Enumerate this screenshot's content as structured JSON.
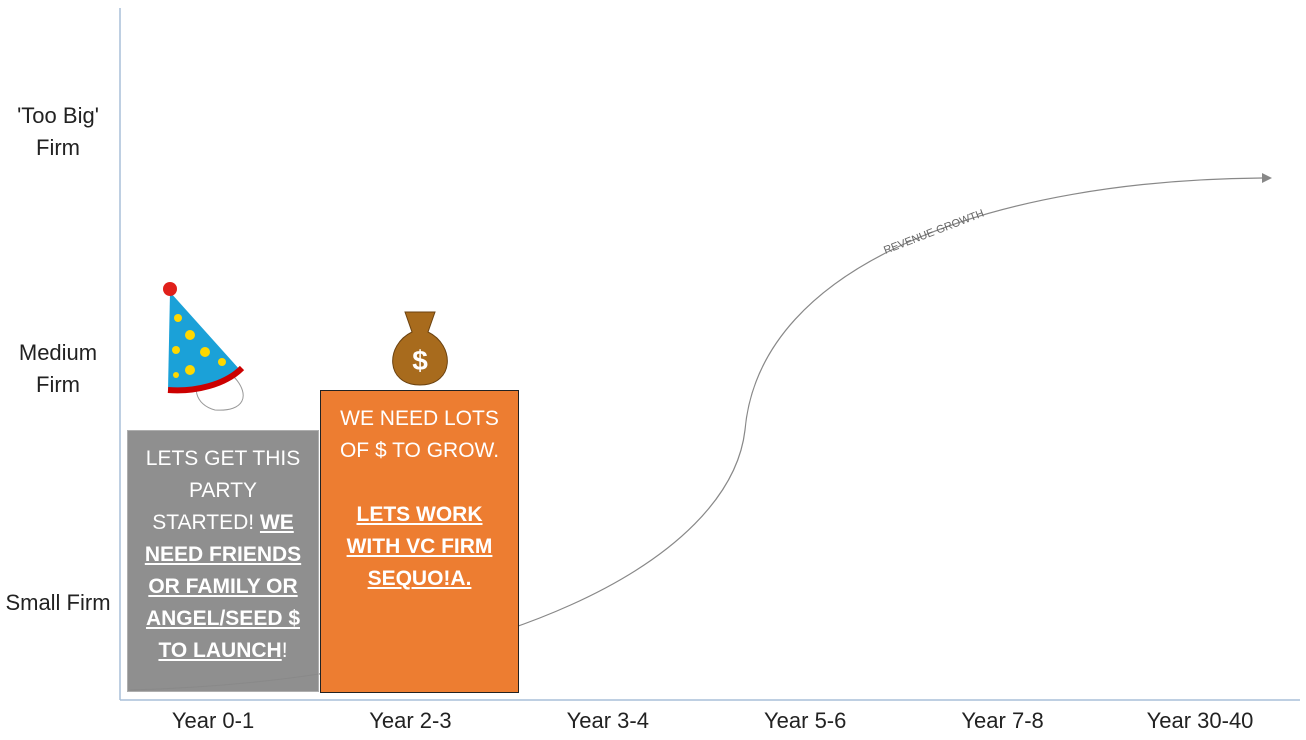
{
  "y_labels": [
    "'Too Big' Firm",
    "Medium Firm",
    "Small Firm"
  ],
  "x_labels": [
    "Year 0-1",
    "Year 2-3",
    "Year 3-4",
    "Year 5-6",
    "Year 7-8",
    "Year 30-40"
  ],
  "curve_label": "REVENUE GROWTH",
  "boxes": [
    {
      "paragraphs": [
        [
          {
            "text": "LETS GET THIS PARTY STARTED! ",
            "emphasis": false
          },
          {
            "text": "WE NEED FRIENDS OR FAMILY OR ANGEL/SEED $ TO LAUNCH",
            "emphasis": true
          },
          {
            "text": "!",
            "emphasis": false
          }
        ]
      ]
    },
    {
      "paragraphs": [
        [
          {
            "text": "WE NEED LOTS OF $ TO GROW.",
            "emphasis": false
          }
        ],
        [
          {
            "text": "LETS WORK WITH VC FIRM SEQUO!A.",
            "emphasis": true
          }
        ]
      ]
    }
  ]
}
